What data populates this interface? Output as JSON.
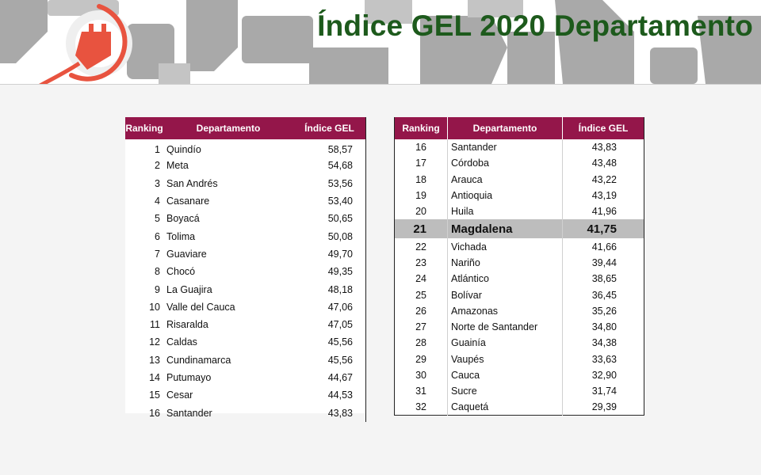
{
  "title": "Índice GEL 2020 Departamento",
  "icons": [
    "power-plug-icon"
  ],
  "colors": {
    "title": "#1d5a1c",
    "header": "#94164a",
    "highlight_row": "#bdbdbd",
    "plug": "#e8533f"
  },
  "columns": {
    "ranking": "Ranking",
    "departamento": "Departamento",
    "indice": "Índice GEL"
  },
  "left_rows": [
    {
      "rank": "1",
      "dep": "Quindío",
      "idx": "58,57"
    },
    {
      "rank": "2",
      "dep": "Meta",
      "idx": "54,68"
    },
    {
      "rank": "3",
      "dep": "San Andrés",
      "idx": "53,56"
    },
    {
      "rank": "4",
      "dep": "Casanare",
      "idx": "53,40"
    },
    {
      "rank": "5",
      "dep": "Boyacá",
      "idx": "50,65"
    },
    {
      "rank": "6",
      "dep": "Tolima",
      "idx": "50,08"
    },
    {
      "rank": "7",
      "dep": "Guaviare",
      "idx": "49,70"
    },
    {
      "rank": "8",
      "dep": "Chocó",
      "idx": "49,35"
    },
    {
      "rank": "9",
      "dep": "La Guajira",
      "idx": "48,18"
    },
    {
      "rank": "10",
      "dep": "Valle del Cauca",
      "idx": "47,06"
    },
    {
      "rank": "11",
      "dep": "Risaralda",
      "idx": "47,05"
    },
    {
      "rank": "12",
      "dep": "Caldas",
      "idx": "45,56"
    },
    {
      "rank": "13",
      "dep": "Cundinamarca",
      "idx": "45,56"
    },
    {
      "rank": "14",
      "dep": "Putumayo",
      "idx": "44,67"
    },
    {
      "rank": "15",
      "dep": "Cesar",
      "idx": "44,53"
    },
    {
      "rank": "16",
      "dep": "Santander",
      "idx": "43,83"
    }
  ],
  "right_rows": [
    {
      "rank": "16",
      "dep": "Santander",
      "idx": "43,83"
    },
    {
      "rank": "17",
      "dep": "Córdoba",
      "idx": "43,48"
    },
    {
      "rank": "18",
      "dep": "Arauca",
      "idx": "43,22"
    },
    {
      "rank": "19",
      "dep": "Antioquia",
      "idx": "43,19"
    },
    {
      "rank": "20",
      "dep": "Huila",
      "idx": "41,96"
    },
    {
      "rank": "21",
      "dep": "Magdalena",
      "idx": "41,75",
      "highlight": true
    },
    {
      "rank": "22",
      "dep": "Vichada",
      "idx": "41,66"
    },
    {
      "rank": "23",
      "dep": "Nariño",
      "idx": "39,44"
    },
    {
      "rank": "24",
      "dep": "Atlántico",
      "idx": "38,65"
    },
    {
      "rank": "25",
      "dep": "Bolívar",
      "idx": "36,45"
    },
    {
      "rank": "26",
      "dep": "Amazonas",
      "idx": "35,26"
    },
    {
      "rank": "27",
      "dep": "Norte de Santander",
      "idx": "34,80"
    },
    {
      "rank": "28",
      "dep": "Guainía",
      "idx": "34,38"
    },
    {
      "rank": "29",
      "dep": "Vaupés",
      "idx": "33,63"
    },
    {
      "rank": "30",
      "dep": "Cauca",
      "idx": "32,90"
    },
    {
      "rank": "31",
      "dep": "Sucre",
      "idx": "31,74"
    },
    {
      "rank": "32",
      "dep": "Caquetá",
      "idx": "29,39"
    }
  ]
}
